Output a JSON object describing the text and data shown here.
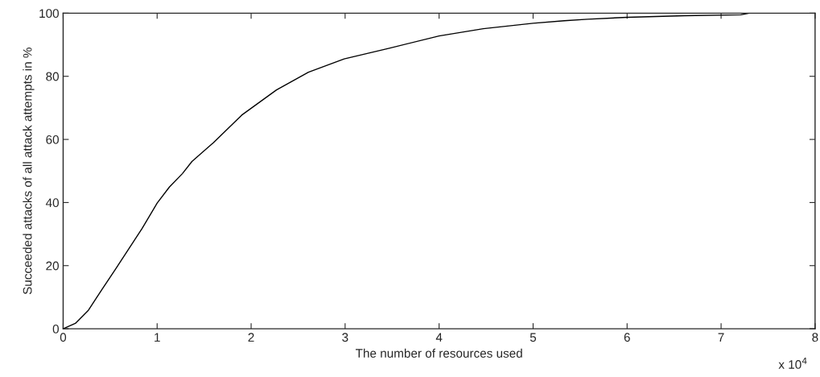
{
  "chart_data": {
    "type": "line",
    "xlabel": "The number of resources used",
    "ylabel": "Succeeded attacks of all attack attempts in %",
    "annotations": [
      "x 10$^{4}$"
    ],
    "x": [
      0,
      0.13,
      0.27,
      0.41,
      0.56,
      0.7,
      0.84,
      1.0,
      1.13,
      1.27,
      1.37,
      1.6,
      1.9,
      2.27,
      2.61,
      2.99,
      3.47,
      4.0,
      4.47,
      5.0,
      5.33,
      5.58,
      6.0,
      6.61,
      7.21,
      7.3,
      8
    ],
    "series": [
      {
        "color": "#000000",
        "values": [
          0,
          1.7,
          5.9,
          12.3,
          19,
          25.4,
          31.8,
          39.8,
          44.9,
          49.2,
          53,
          59,
          67.7,
          75.7,
          81.3,
          85.5,
          88.9,
          92.8,
          95.1,
          96.8,
          97.6,
          98.1,
          98.7,
          99.2,
          99.5,
          100,
          100
        ]
      }
    ],
    "xlim": [
      0,
      8
    ],
    "xticks": [
      0,
      1,
      2,
      3,
      4,
      5,
      6,
      7,
      8
    ],
    "ylim": [
      0,
      100
    ],
    "yticks": [
      0,
      20,
      40,
      60,
      80,
      100
    ],
    "marker": "none",
    "line_style": "solid"
  }
}
